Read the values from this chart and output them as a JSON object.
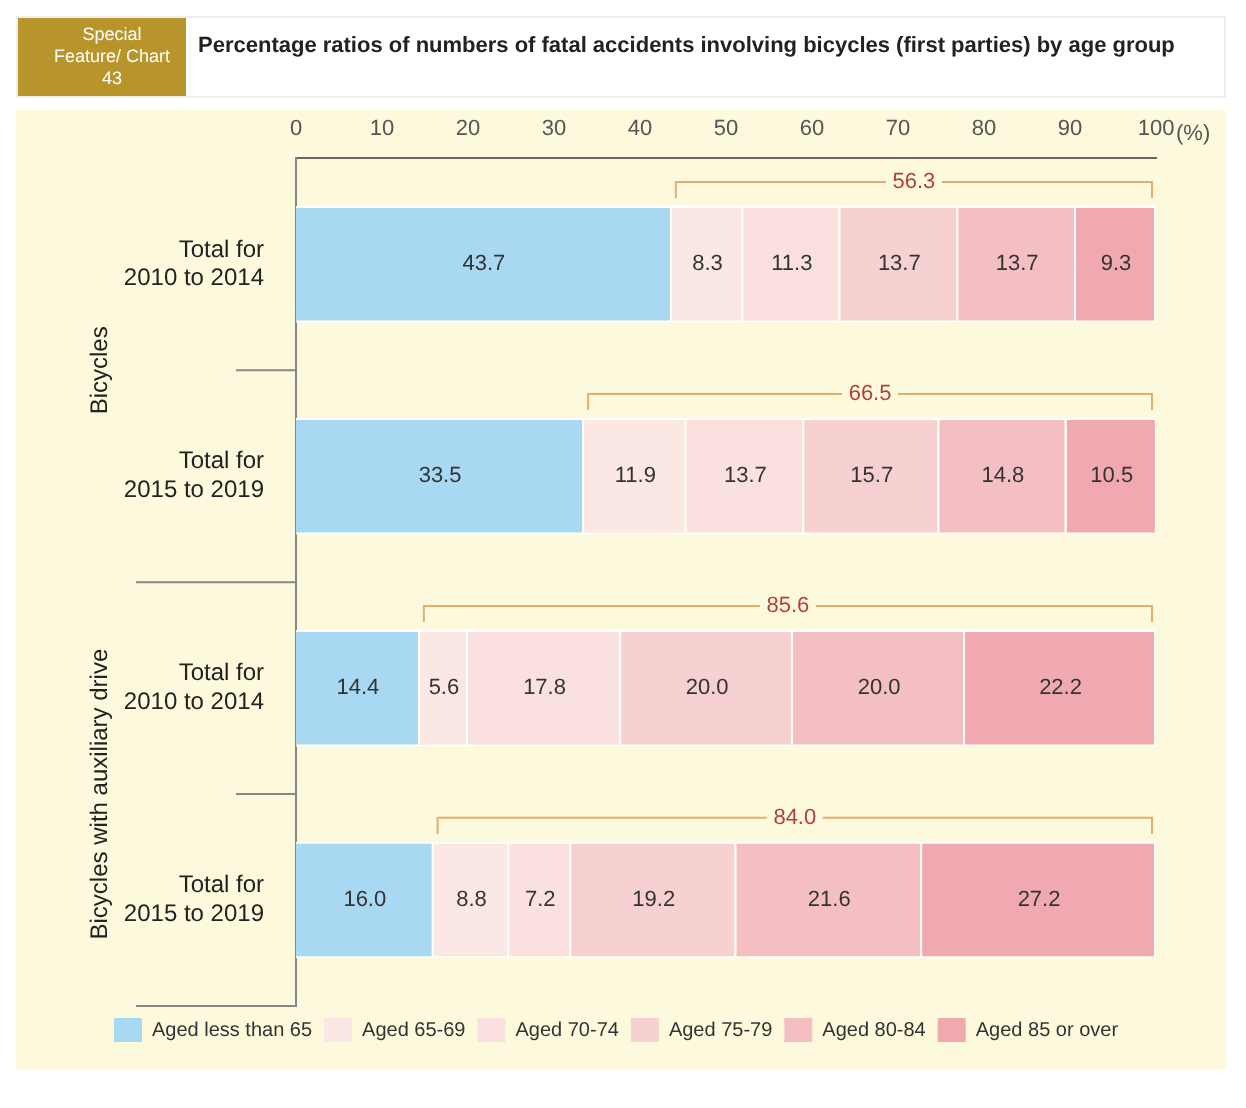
{
  "chart_data": {
    "type": "bar",
    "orientation": "horizontal",
    "stacked": true,
    "title": "Percentage ratios of numbers of fatal accidents involving bicycles (first parties) by age group",
    "subtitle": "Special Feature/ Chart 43",
    "xlabel": "(%)",
    "categories": [
      "Total for 2010 to 2014",
      "Total for 2015 to 2019",
      "Total for 2010 to 2014",
      "Total for 2015 to 2019"
    ],
    "series": [
      {
        "name": "Aged less than 65",
        "color": "#a9d9f2",
        "values": [
          43.7,
          33.5,
          14.4,
          16.0
        ],
        "value_labels": [
          "43.7",
          "33.5",
          "14.4",
          "16.0"
        ]
      },
      {
        "name": "Aged 65-69",
        "color": "#fbe7e4",
        "values": [
          8.3,
          11.9,
          5.6,
          8.8
        ],
        "value_labels": [
          "8.3",
          "11.9",
          "5.6",
          "8.8"
        ]
      },
      {
        "name": "Aged 70-74",
        "color": "#fae1e0",
        "values": [
          11.3,
          13.7,
          17.8,
          7.2
        ],
        "value_labels": [
          "11.3",
          "13.7",
          "17.8",
          "7.2"
        ]
      },
      {
        "name": "Aged 75-79",
        "color": "#f7d0d1",
        "values": [
          13.7,
          15.7,
          20.0,
          19.2
        ],
        "value_labels": [
          "13.7",
          "15.7",
          "20.0",
          "19.2"
        ]
      },
      {
        "name": "Aged 80-84",
        "color": "#f4bfc3",
        "values": [
          13.7,
          14.8,
          20.0,
          21.6
        ],
        "value_labels": [
          "13.7",
          "14.8",
          "20.0",
          "21.6"
        ]
      },
      {
        "name": "Aged 85 or over",
        "color": "#f0a9b1",
        "values": [
          9.3,
          10.5,
          22.2,
          27.2
        ],
        "value_labels": [
          "9.3",
          "10.5",
          "22.2",
          "27.2"
        ]
      }
    ],
    "xlim": [
      0,
      100
    ],
    "xticks": [
      0,
      10,
      20,
      30,
      40,
      50,
      60,
      70,
      80,
      90,
      100
    ],
    "grid": false,
    "legend": "bottom",
    "annotations": [
      "56.3",
      "66.5",
      "85.6",
      "84.0",
      "Bicycles",
      "Bicycles with auxiliary drive"
    ]
  }
}
